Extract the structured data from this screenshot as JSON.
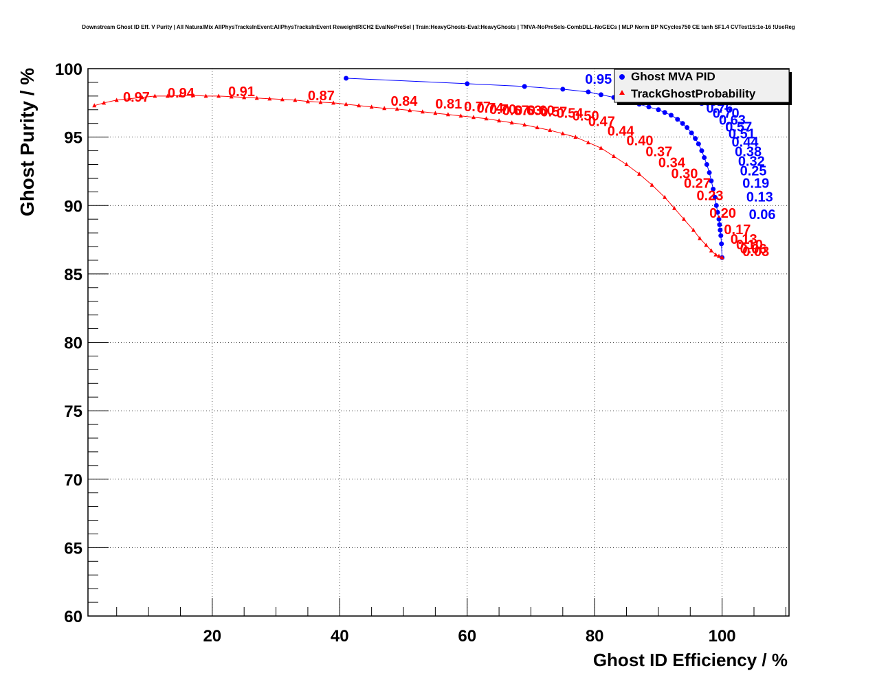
{
  "chart_data": {
    "type": "scatter",
    "title": "Downstream Ghost ID Eff. V Purity | All NaturalMix AllPhysTracksInEvent:AllPhysTracksInEvent ReweightRICH2 EvalNoPreSel | Train:HeavyGhosts-Eval:HeavyGhosts | TMVA-NoPreSels-CombDLL-NoGECs | MLP Norm BP NCycles750 CE tanh SF1.4 CVTest15:1e-16 !UseReg",
    "xlabel": "Ghost ID Efficiency / %",
    "ylabel": "Ghost Purity / %",
    "xlim": [
      0.5,
      110.5
    ],
    "ylim": [
      60,
      100
    ],
    "xticks": [
      20,
      40,
      60,
      80,
      100
    ],
    "yticks": [
      60,
      65,
      70,
      75,
      80,
      85,
      90,
      95,
      100
    ],
    "grid": true,
    "legend_position": "top-right",
    "series": [
      {
        "name": "Ghost MVA PID",
        "color": "#0000ff",
        "marker": "circle",
        "x": [
          41,
          60,
          69,
          75,
          79,
          81,
          83,
          85,
          87,
          88.5,
          90,
          91,
          92,
          93,
          93.8,
          94.5,
          95.2,
          95.8,
          96.3,
          96.8,
          97.2,
          97.6,
          98,
          98.3,
          98.6,
          98.9,
          99.1,
          99.3,
          99.5,
          99.6,
          99.7,
          99.8,
          99.9,
          100
        ],
        "y": [
          99.3,
          98.9,
          98.7,
          98.5,
          98.3,
          98.1,
          97.9,
          97.7,
          97.4,
          97.2,
          97.0,
          96.8,
          96.6,
          96.3,
          96.0,
          95.7,
          95.3,
          94.9,
          94.5,
          94.0,
          93.5,
          93.0,
          92.4,
          91.8,
          91.2,
          90.6,
          90.0,
          89.5,
          89.0,
          88.6,
          88.2,
          87.8,
          87.2,
          86.2
        ],
        "labels": [
          {
            "text": "0.95",
            "x": 78.5,
            "y": 98.9
          },
          {
            "text": "0.82",
            "x": 96.2,
            "y": 97.3
          },
          {
            "text": "0.76",
            "x": 97.5,
            "y": 96.8
          },
          {
            "text": "0.70",
            "x": 98.5,
            "y": 96.4
          },
          {
            "text": "0.63",
            "x": 99.5,
            "y": 95.9
          },
          {
            "text": "0.57",
            "x": 100.5,
            "y": 95.4
          },
          {
            "text": "0.51",
            "x": 101,
            "y": 94.9
          },
          {
            "text": "0.44",
            "x": 101.5,
            "y": 94.3
          },
          {
            "text": "0.38",
            "x": 102,
            "y": 93.6
          },
          {
            "text": "0.32",
            "x": 102.5,
            "y": 92.9
          },
          {
            "text": "0.25",
            "x": 102.8,
            "y": 92.2
          },
          {
            "text": "0.19",
            "x": 103.2,
            "y": 91.3
          },
          {
            "text": "0.13",
            "x": 103.8,
            "y": 90.3
          },
          {
            "text": "0.06",
            "x": 104.2,
            "y": 89.0
          }
        ]
      },
      {
        "name": "TrackGhostProbability",
        "color": "#ff0000",
        "marker": "triangle",
        "x": [
          1.5,
          3,
          5,
          7,
          9,
          11,
          13,
          15,
          17,
          19,
          21,
          23,
          25,
          27,
          29,
          31,
          33,
          35,
          37,
          39,
          41,
          43,
          45,
          47,
          49,
          51,
          53,
          55,
          57,
          59,
          61,
          63,
          65,
          67,
          69,
          71,
          73,
          75,
          77,
          79,
          81,
          83,
          85,
          87,
          89,
          91,
          92.5,
          94,
          95.5,
          96.5,
          97.5,
          98.3,
          99,
          99.5,
          100
        ],
        "y": [
          97.3,
          97.5,
          97.7,
          97.8,
          97.9,
          98.0,
          98.0,
          98.05,
          98.05,
          98.0,
          98.0,
          97.95,
          97.9,
          97.85,
          97.8,
          97.75,
          97.7,
          97.6,
          97.55,
          97.5,
          97.4,
          97.3,
          97.2,
          97.1,
          97.05,
          96.95,
          96.85,
          96.75,
          96.65,
          96.55,
          96.45,
          96.35,
          96.2,
          96.05,
          95.9,
          95.7,
          95.5,
          95.25,
          95.0,
          94.6,
          94.2,
          93.6,
          93.0,
          92.3,
          91.5,
          90.6,
          89.8,
          89.0,
          88.2,
          87.6,
          87.1,
          86.7,
          86.4,
          86.3,
          86.2
        ],
        "labels": [
          {
            "text": "0.97",
            "x": 6,
            "y": 97.6
          },
          {
            "text": "0.94",
            "x": 13,
            "y": 97.9
          },
          {
            "text": "0.91",
            "x": 22.5,
            "y": 98.0
          },
          {
            "text": "0.87",
            "x": 35,
            "y": 97.7
          },
          {
            "text": "0.84",
            "x": 48,
            "y": 97.3
          },
          {
            "text": "0.81",
            "x": 55,
            "y": 97.1
          },
          {
            "text": "0.77",
            "x": 59.5,
            "y": 96.9
          },
          {
            "text": "0.74",
            "x": 61.5,
            "y": 96.8
          },
          {
            "text": "0.70",
            "x": 63.5,
            "y": 96.7
          },
          {
            "text": "0.67",
            "x": 65.5,
            "y": 96.6
          },
          {
            "text": "0.63",
            "x": 67.5,
            "y": 96.6
          },
          {
            "text": "0.60",
            "x": 69.5,
            "y": 96.6
          },
          {
            "text": "0.57",
            "x": 71.5,
            "y": 96.5
          },
          {
            "text": "0.54",
            "x": 74,
            "y": 96.4
          },
          {
            "text": "0.50",
            "x": 76.5,
            "y": 96.2
          },
          {
            "text": "0.47",
            "x": 79,
            "y": 95.8
          },
          {
            "text": "0.44",
            "x": 82,
            "y": 95.1
          },
          {
            "text": "0.40",
            "x": 85,
            "y": 94.4
          },
          {
            "text": "0.37",
            "x": 88,
            "y": 93.6
          },
          {
            "text": "0.34",
            "x": 90,
            "y": 92.8
          },
          {
            "text": "0.30",
            "x": 92,
            "y": 92.0
          },
          {
            "text": "0.27",
            "x": 94,
            "y": 91.3
          },
          {
            "text": "0.23",
            "x": 96,
            "y": 90.4
          },
          {
            "text": "0.20",
            "x": 98,
            "y": 89.1
          },
          {
            "text": "0.17",
            "x": 100.3,
            "y": 87.9
          },
          {
            "text": "0.13",
            "x": 101.3,
            "y": 87.2
          },
          {
            "text": "0.10",
            "x": 102.2,
            "y": 86.8
          },
          {
            "text": "0.06",
            "x": 102.8,
            "y": 86.5
          },
          {
            "text": "0.03",
            "x": 103.2,
            "y": 86.3
          }
        ]
      }
    ]
  }
}
